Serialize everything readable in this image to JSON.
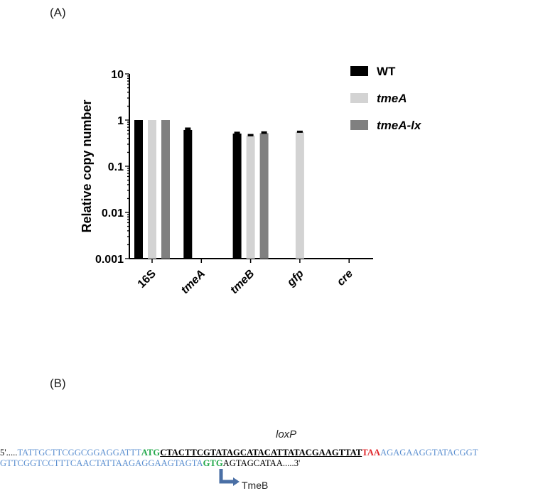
{
  "panel_a_label": "(A)",
  "panel_b_label": "(B)",
  "chart_data": {
    "type": "bar",
    "title": "",
    "ylabel": "Relative copy number",
    "xlabel": "",
    "yscale": "log",
    "ylim": [
      0.001,
      10
    ],
    "yticks": [
      "10",
      "1",
      "0.1",
      "0.01",
      "0.001"
    ],
    "categories": [
      "16S",
      "tmeA",
      "tmeB",
      "gfp",
      "cre"
    ],
    "series": [
      {
        "name": "WT",
        "color": "#000000",
        "values": [
          1.0,
          0.61,
          0.51,
          null,
          null
        ],
        "errors": [
          0,
          0.08,
          0.05,
          null,
          null
        ]
      },
      {
        "name": "tmeA",
        "color": "#d3d3d3",
        "values": [
          1.0,
          null,
          0.46,
          0.55,
          null
        ],
        "errors": [
          0,
          null,
          0.04,
          0.04,
          null
        ]
      },
      {
        "name": "tmeA-lx",
        "color": "#808080",
        "values": [
          1.0,
          null,
          0.52,
          null,
          null
        ],
        "errors": [
          0,
          null,
          0.05,
          null,
          null
        ]
      }
    ],
    "legend_position": "top-right",
    "grid": false
  },
  "sequence": {
    "loxp_label": "loxP",
    "line1": {
      "prefix": "5'.....",
      "up": "TATTGCTTCGGCGGAGGATTT",
      "start": "ATG",
      "loxp": "CTACTTCGTATAGCATACATTATACGAAGTTAT",
      "stop": "TAA",
      "down": "AGAGAAGGTATACGGT"
    },
    "line2": {
      "up": "GTTCGGTCCTTTCAACTATTAAGAGGAAGTAGTA",
      "start": "GTG",
      "down": "AGTAGCATAA.....3'"
    },
    "arrow_label": "TmeB"
  }
}
